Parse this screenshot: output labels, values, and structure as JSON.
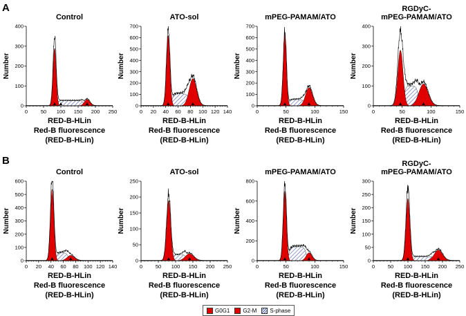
{
  "panel_labels": [
    "A",
    "B"
  ],
  "axis": {
    "xlabel": "RED-B-HLin",
    "caption_line1": "Red-B fluorescence",
    "caption_line2": "(RED-B-HLin)",
    "ylabel": "Number"
  },
  "legend": {
    "items": [
      {
        "label": "G0G1",
        "color": "#e00000",
        "pattern": "solid"
      },
      {
        "label": "G2-M",
        "color": "#e00000",
        "pattern": "solid"
      },
      {
        "label": "S-phase",
        "color": "#4a5aa8",
        "pattern": "hatch"
      }
    ]
  },
  "colors": {
    "phase_fill": "#e00000",
    "s_phase_hatch": "#4a5aa8",
    "outline": "#000000"
  },
  "chart_data": [
    {
      "type": "area",
      "panel": "A",
      "title": "Control",
      "xlim": [
        0,
        250
      ],
      "ylim": [
        0,
        400
      ],
      "xticks": [
        0,
        50,
        100,
        150,
        200,
        250
      ],
      "yticks": [
        0,
        100,
        200,
        300,
        400
      ],
      "g1": {
        "mean": 82,
        "sd": 4.5,
        "height": 290
      },
      "g2": {
        "mean": 176,
        "sd": 8,
        "height": 32
      },
      "s": {
        "from": 90,
        "to": 165,
        "level": 25
      },
      "peak": 350,
      "markers": [
        82,
        100,
        176
      ]
    },
    {
      "type": "area",
      "panel": "A",
      "title": "ATO-sol",
      "xlim": [
        0,
        140
      ],
      "ylim": [
        0,
        700
      ],
      "xticks": [
        0,
        20,
        40,
        60,
        80,
        100,
        120,
        140
      ],
      "yticks": [
        0,
        100,
        200,
        300,
        400,
        500,
        600,
        700
      ],
      "g1": {
        "mean": 44,
        "sd": 2.8,
        "height": 620
      },
      "g2": {
        "mean": 84,
        "sd": 6,
        "height": 240
      },
      "s": {
        "from": 50,
        "to": 78,
        "level": 105
      },
      "peak": 680,
      "markers": [
        44,
        84
      ]
    },
    {
      "type": "area",
      "panel": "A",
      "title": "mPEG-PAMAM/ATO",
      "xlim": [
        0,
        150
      ],
      "ylim": [
        0,
        700
      ],
      "xticks": [
        0,
        50,
        100,
        150
      ],
      "yticks": [
        0,
        100,
        200,
        300,
        400,
        500,
        600,
        700
      ],
      "g1": {
        "mean": 48,
        "sd": 2.8,
        "height": 630
      },
      "g2": {
        "mean": 90,
        "sd": 6,
        "height": 160
      },
      "s": {
        "from": 55,
        "to": 82,
        "level": 55
      },
      "peak": 650,
      "markers": [
        48,
        90
      ]
    },
    {
      "type": "area",
      "panel": "A",
      "title": "RGDyC-\nmPEG-PAMAM/ATO",
      "xlim": [
        0,
        150
      ],
      "ylim": [
        0,
        400
      ],
      "xticks": [
        0,
        50,
        100,
        150
      ],
      "yticks": [
        0,
        100,
        200,
        300,
        400
      ],
      "g1": {
        "mean": 47,
        "sd": 4.5,
        "height": 280
      },
      "g2": {
        "mean": 87,
        "sd": 8,
        "height": 110
      },
      "s": {
        "from": 53,
        "to": 78,
        "level": 100
      },
      "peak": 375,
      "markers": [
        47,
        87
      ]
    },
    {
      "type": "area",
      "panel": "B",
      "title": "Control",
      "xlim": [
        0,
        140
      ],
      "ylim": [
        0,
        600
      ],
      "xticks": [
        0,
        20,
        40,
        60,
        80,
        100,
        120,
        140
      ],
      "yticks": [
        0,
        100,
        200,
        300,
        400,
        500,
        600
      ],
      "g1": {
        "mean": 42,
        "sd": 2.8,
        "height": 540
      },
      "g2": {
        "mean": 72,
        "sd": 6,
        "height": 40
      },
      "s": {
        "from": 48,
        "to": 68,
        "level": 60
      },
      "peak": 630,
      "markers": [
        42,
        72
      ]
    },
    {
      "type": "area",
      "panel": "B",
      "title": "ATO-sol",
      "xlim": [
        0,
        250
      ],
      "ylim": [
        0,
        250
      ],
      "xticks": [
        0,
        50,
        100,
        150,
        200,
        250
      ],
      "yticks": [
        0,
        50,
        100,
        150,
        200,
        250
      ],
      "g1": {
        "mean": 80,
        "sd": 6,
        "height": 190
      },
      "g2": {
        "mean": 140,
        "sd": 12,
        "height": 22
      },
      "s": {
        "from": 92,
        "to": 130,
        "level": 18
      },
      "peak": 210,
      "markers": [
        80,
        140
      ]
    },
    {
      "type": "area",
      "panel": "B",
      "title": "mPEG-PAMAM/ATO",
      "xlim": [
        0,
        150
      ],
      "ylim": [
        0,
        800
      ],
      "xticks": [
        0,
        50,
        100,
        150
      ],
      "yticks": [
        0,
        200,
        400,
        600,
        800
      ],
      "g1": {
        "mean": 48,
        "sd": 2.8,
        "height": 700
      },
      "g2": {
        "mean": 90,
        "sd": 5,
        "height": 80
      },
      "s": {
        "from": 55,
        "to": 85,
        "level": 140
      },
      "peak": 780,
      "markers": [
        48,
        90
      ]
    },
    {
      "type": "area",
      "panel": "B",
      "title": "RGDyC-\nmPEG-PAMAM/ATO",
      "xlim": [
        0,
        250
      ],
      "ylim": [
        0,
        300
      ],
      "xticks": [
        0,
        50,
        100,
        150,
        200,
        250
      ],
      "yticks": [
        0,
        50,
        100,
        150,
        200,
        250,
        300
      ],
      "g1": {
        "mean": 100,
        "sd": 5.5,
        "height": 235
      },
      "g2": {
        "mean": 188,
        "sd": 12,
        "height": 40
      },
      "s": {
        "from": 112,
        "to": 175,
        "level": 15
      },
      "peak": 280,
      "markers": [
        100,
        188
      ]
    }
  ]
}
